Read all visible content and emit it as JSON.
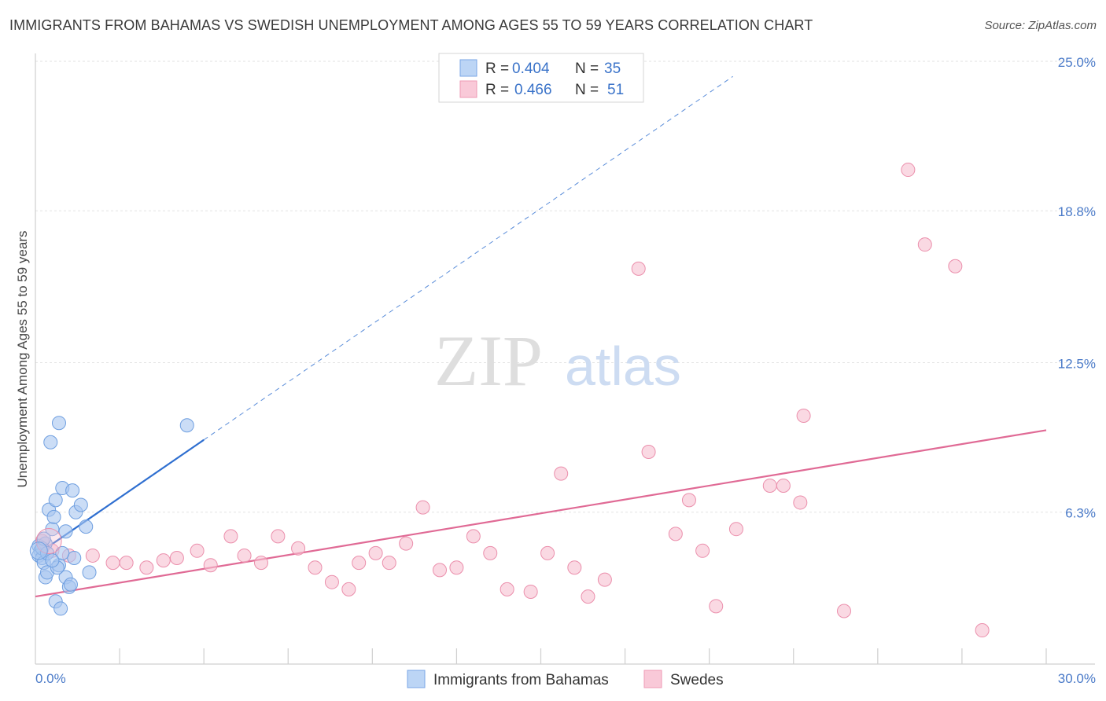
{
  "chart_data": {
    "type": "scatter",
    "title": "IMMIGRANTS FROM BAHAMAS VS SWEDISH UNEMPLOYMENT AMONG AGES 55 TO 59 YEARS CORRELATION CHART",
    "source": "Source: ZipAtlas.com",
    "ylabel": "Unemployment Among Ages 55 to 59 years",
    "xlim": [
      0,
      30
    ],
    "ylim": [
      0,
      25
    ],
    "y_ticks": [
      {
        "value": 6.3,
        "label": "6.3%"
      },
      {
        "value": 12.5,
        "label": "12.5%"
      },
      {
        "value": 18.8,
        "label": "18.8%"
      },
      {
        "value": 25.0,
        "label": "25.0%"
      }
    ],
    "x_tick_labels": {
      "min": "0.0%",
      "max": "30.0%"
    },
    "watermark": {
      "zip": "ZIP",
      "atlas": "atlas"
    },
    "legend": {
      "r_label": "R =",
      "n_label": "N =",
      "entries": [
        {
          "r": "0.404",
          "n": "35"
        },
        {
          "r": "0.466",
          "n": "51"
        }
      ]
    },
    "series": [
      {
        "name": "Immigrants from Bahamas",
        "color": "#a9c7f0",
        "stroke": "#6f9fe0",
        "line_color": "#2f6fd0",
        "trend": {
          "x0": 0.0,
          "y0": 4.5,
          "x1": 5.0,
          "y1": 9.3,
          "dash_to_x": 20.7
        },
        "points": [
          [
            0.1,
            4.9
          ],
          [
            0.15,
            4.7
          ],
          [
            0.1,
            4.5
          ],
          [
            0.2,
            4.4
          ],
          [
            0.25,
            4.2
          ],
          [
            0.3,
            3.6
          ],
          [
            0.35,
            3.8
          ],
          [
            0.3,
            5.0
          ],
          [
            0.4,
            6.4
          ],
          [
            0.5,
            5.6
          ],
          [
            0.55,
            6.1
          ],
          [
            0.6,
            6.8
          ],
          [
            0.7,
            10.0
          ],
          [
            0.45,
            9.2
          ],
          [
            0.8,
            7.3
          ],
          [
            0.9,
            5.5
          ],
          [
            1.1,
            7.2
          ],
          [
            1.2,
            6.3
          ],
          [
            1.35,
            6.6
          ],
          [
            1.5,
            5.7
          ],
          [
            1.6,
            3.8
          ],
          [
            0.6,
            2.6
          ],
          [
            0.75,
            2.3
          ],
          [
            0.9,
            3.6
          ],
          [
            1.0,
            3.2
          ],
          [
            1.05,
            3.3
          ],
          [
            1.15,
            4.4
          ],
          [
            0.7,
            4.1
          ],
          [
            0.8,
            4.6
          ],
          [
            0.2,
            4.8
          ],
          [
            0.35,
            4.6
          ],
          [
            4.5,
            9.9
          ],
          [
            0.65,
            4.0
          ],
          [
            0.5,
            4.3
          ],
          [
            0.25,
            5.2
          ]
        ]
      },
      {
        "name": "Swedes",
        "color": "#f7bfd0",
        "stroke": "#eb8fac",
        "line_color": "#e06a95",
        "trend": {
          "x0": 0.0,
          "y0": 2.8,
          "x1": 30.0,
          "y1": 9.7
        },
        "points": [
          [
            0.2,
            5.1
          ],
          [
            0.5,
            4.7
          ],
          [
            1.0,
            4.5
          ],
          [
            1.7,
            4.5
          ],
          [
            2.3,
            4.2
          ],
          [
            2.7,
            4.2
          ],
          [
            3.3,
            4.0
          ],
          [
            3.8,
            4.3
          ],
          [
            4.2,
            4.4
          ],
          [
            4.8,
            4.7
          ],
          [
            5.2,
            4.1
          ],
          [
            5.8,
            5.3
          ],
          [
            6.2,
            4.5
          ],
          [
            6.7,
            4.2
          ],
          [
            7.2,
            5.3
          ],
          [
            7.8,
            4.8
          ],
          [
            8.3,
            4.0
          ],
          [
            8.8,
            3.4
          ],
          [
            9.3,
            3.1
          ],
          [
            9.6,
            4.2
          ],
          [
            10.1,
            4.6
          ],
          [
            10.5,
            4.2
          ],
          [
            11.0,
            5.0
          ],
          [
            11.5,
            6.5
          ],
          [
            12.0,
            3.9
          ],
          [
            12.5,
            4.0
          ],
          [
            13.0,
            5.3
          ],
          [
            13.5,
            4.6
          ],
          [
            14.0,
            3.1
          ],
          [
            14.7,
            3.0
          ],
          [
            15.2,
            4.6
          ],
          [
            15.6,
            7.9
          ],
          [
            16.0,
            4.0
          ],
          [
            16.4,
            2.8
          ],
          [
            16.9,
            3.5
          ],
          [
            17.9,
            16.4
          ],
          [
            18.2,
            8.8
          ],
          [
            19.0,
            5.4
          ],
          [
            19.4,
            6.8
          ],
          [
            19.8,
            4.7
          ],
          [
            20.2,
            2.4
          ],
          [
            20.8,
            5.6
          ],
          [
            21.8,
            7.4
          ],
          [
            22.2,
            7.4
          ],
          [
            22.7,
            6.7
          ],
          [
            22.8,
            10.3
          ],
          [
            24.0,
            2.2
          ],
          [
            25.9,
            20.5
          ],
          [
            26.4,
            17.4
          ],
          [
            27.3,
            16.5
          ],
          [
            28.1,
            1.4
          ]
        ]
      }
    ]
  }
}
